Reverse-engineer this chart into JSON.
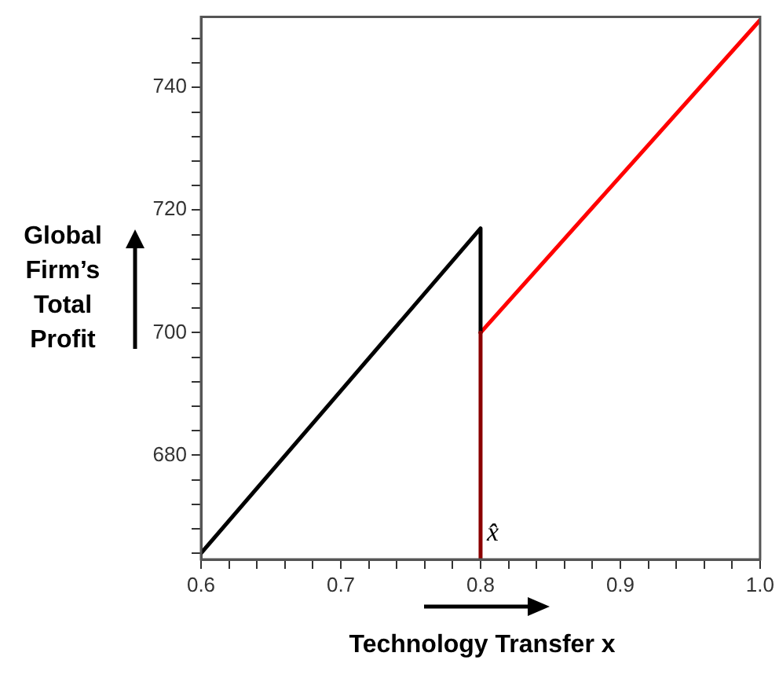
{
  "chart_data": {
    "type": "line",
    "xlabel": "Technology Transfer  x",
    "ylabel": "Global Firm’s Total Profit",
    "series": [
      {
        "color": "#8b0000",
        "x": [
          0.8,
          0.8
        ],
        "values": [
          663,
          700
        ]
      },
      {
        "color": "#000000",
        "x": [
          0.6,
          0.8,
          0.8
        ],
        "values": [
          664,
          717,
          700
        ]
      },
      {
        "color": "#ff0000",
        "x": [
          0.8,
          1.0
        ],
        "values": [
          700,
          751
        ]
      }
    ],
    "xlim": [
      0.6,
      1.0
    ],
    "xticks": [
      0.6,
      {
        "value": 0.62,
        "label": null
      },
      {
        "value": 0.64,
        "label": null
      },
      {
        "value": 0.66,
        "label": null
      },
      {
        "value": 0.68,
        "label": null
      },
      0.7,
      {
        "value": 0.72,
        "label": null
      },
      {
        "value": 0.74,
        "label": null
      },
      {
        "value": 0.76,
        "label": null
      },
      {
        "value": 0.78,
        "label": null
      },
      0.8,
      {
        "value": 0.82,
        "label": null
      },
      {
        "value": 0.84,
        "label": null
      },
      {
        "value": 0.86,
        "label": null
      },
      {
        "value": 0.88,
        "label": null
      },
      0.9,
      {
        "value": 0.92,
        "label": null
      },
      {
        "value": 0.94,
        "label": null
      },
      {
        "value": 0.96,
        "label": null
      },
      {
        "value": 0.98,
        "label": null
      },
      {
        "value": 1.0,
        "label": "1.0"
      }
    ],
    "ylim": [
      663,
      751.5
    ],
    "yticks": [
      {
        "value": 664,
        "label": null
      },
      {
        "value": 668,
        "label": null
      },
      {
        "value": 672,
        "label": null
      },
      {
        "value": 676,
        "label": null
      },
      680,
      {
        "value": 684,
        "label": null
      },
      {
        "value": 688,
        "label": null
      },
      {
        "value": 692,
        "label": null
      },
      {
        "value": 696,
        "label": null
      },
      700,
      {
        "value": 704,
        "label": null
      },
      {
        "value": 708,
        "label": null
      },
      {
        "value": 712,
        "label": null
      },
      {
        "value": 716,
        "label": null
      },
      720,
      {
        "value": 724,
        "label": null
      },
      {
        "value": 728,
        "label": null
      },
      {
        "value": 732,
        "label": null
      },
      {
        "value": 736,
        "label": null
      },
      740,
      {
        "value": 744,
        "label": null
      },
      {
        "value": 748,
        "label": null
      }
    ],
    "annotations": [
      {
        "text": "x̂",
        "x": 0.8,
        "y": 665
      }
    ],
    "grid": false,
    "legend": false,
    "marker": "none",
    "line_style": "solid"
  }
}
